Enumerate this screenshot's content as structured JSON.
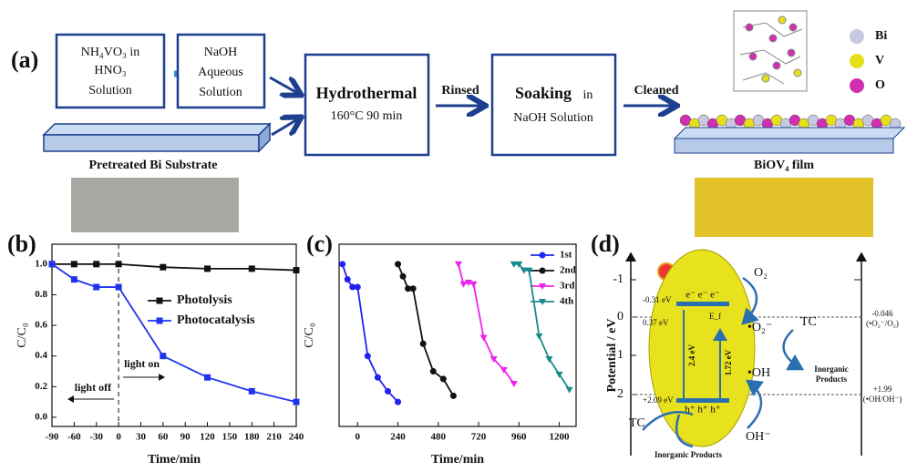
{
  "panel_a": {
    "label": "(a)",
    "box1": [
      "NH₄VO₃ in",
      "HNO₃",
      "Solution"
    ],
    "box2": [
      "NaOH",
      "Aqueous",
      "Solution"
    ],
    "substrate": "Pretreated Bi Substrate",
    "hydrothermal": "Hydrothermal",
    "hydrothermal_cond": "160°C 90 min",
    "rinsed": "Rinsed",
    "soaking": "Soaking",
    "soaking_in": "in",
    "soaking_sol": "NaOH Solution",
    "cleaned": "Cleaned",
    "film": "BiOV₄ film",
    "legend": [
      "Bi",
      "V",
      "O"
    ]
  },
  "chart_data": [
    {
      "type": "line",
      "panel_label": "(b)",
      "xlabel": "Time/min",
      "ylabel": "C/C₀",
      "xlim": [
        -90,
        240
      ],
      "xticks": [
        -90,
        -60,
        -30,
        0,
        30,
        60,
        90,
        120,
        150,
        180,
        210,
        240
      ],
      "ylim": [
        -0.06,
        1.13
      ],
      "yticks": [
        {
          "value": 0,
          "label": "0.0"
        },
        0.2,
        0.4,
        0.6,
        0.8,
        {
          "value": 1,
          "label": "1.0"
        }
      ],
      "annotations": [
        "light off",
        "light on"
      ],
      "legend": "right",
      "series": [
        {
          "name": "Photolysis",
          "color": "#111111",
          "marker": "square",
          "x": [
            -90,
            -60,
            -30,
            0,
            60,
            120,
            180,
            240
          ],
          "values": [
            1,
            1,
            1,
            1,
            0.98,
            0.97,
            0.97,
            0.96
          ]
        },
        {
          "name": "Photocatalysis",
          "color": "#2233ee",
          "marker": "square",
          "x": [
            -90,
            -60,
            -30,
            0,
            60,
            120,
            180,
            240
          ],
          "values": [
            1,
            0.9,
            0.85,
            0.85,
            0.4,
            0.26,
            0.17,
            0.1
          ]
        }
      ]
    },
    {
      "type": "line",
      "panel_label": "(c)",
      "xlabel": "Time/min",
      "ylabel": "C/C₀",
      "xlim": [
        -110,
        1300
      ],
      "xticks": [
        0,
        240,
        480,
        720,
        960,
        1200
      ],
      "ylim": [
        -0.06,
        1.13
      ],
      "legend": "upper right",
      "series": [
        {
          "name": "1st",
          "color": "#2222ee",
          "marker": "circle",
          "x": [
            -90,
            -60,
            -30,
            0,
            60,
            120,
            180,
            240
          ],
          "values": [
            1,
            0.9,
            0.85,
            0.85,
            0.4,
            0.26,
            0.17,
            0.1
          ]
        },
        {
          "name": "2nd",
          "color": "#111111",
          "marker": "circle",
          "x": [
            240,
            270,
            300,
            330,
            390,
            450,
            510,
            570
          ],
          "values": [
            1,
            0.92,
            0.84,
            0.84,
            0.48,
            0.3,
            0.25,
            0.14
          ]
        },
        {
          "name": "3rd",
          "color": "#ee22ee",
          "marker": "triangle",
          "x": [
            600,
            630,
            660,
            690,
            750,
            810,
            870,
            930
          ],
          "values": [
            1,
            0.87,
            0.88,
            0.87,
            0.52,
            0.38,
            0.31,
            0.22
          ]
        },
        {
          "name": "4th",
          "color": "#1a8a8a",
          "marker": "triangle",
          "x": [
            930,
            960,
            990,
            1020,
            1080,
            1140,
            1200,
            1260
          ],
          "values": [
            1,
            1,
            0.96,
            0.96,
            0.53,
            0.38,
            0.28,
            0.18
          ]
        }
      ]
    }
  ],
  "panel_d": {
    "label": "(d)",
    "ylabel": "Potential / eV",
    "ticks": [
      "-1",
      "0",
      "1",
      "2"
    ],
    "cb": "-0.31 eV",
    "ef": "0.37 eV",
    "vb": "+2.09 eV",
    "electrons": "e⁻ e⁻ e⁻",
    "holes": "h⁺ h⁺ h⁺",
    "eg1": "2.4 eV",
    "eg2": "1.72 eV",
    "efl": "E_f",
    "o2": "O₂",
    "o2rad": "•O₂⁻",
    "tc1": "TC",
    "inorg1": [
      "Inorganic",
      "Products"
    ],
    "oh": "•OH",
    "ohm": "OH⁻",
    "tc2": "TC",
    "inorg2": "Inorganic Products",
    "right1": [
      "-0.046",
      "(•O₂⁻/O₂)"
    ],
    "right2": [
      "+1.99",
      "(•OH/OH⁻)"
    ]
  }
}
